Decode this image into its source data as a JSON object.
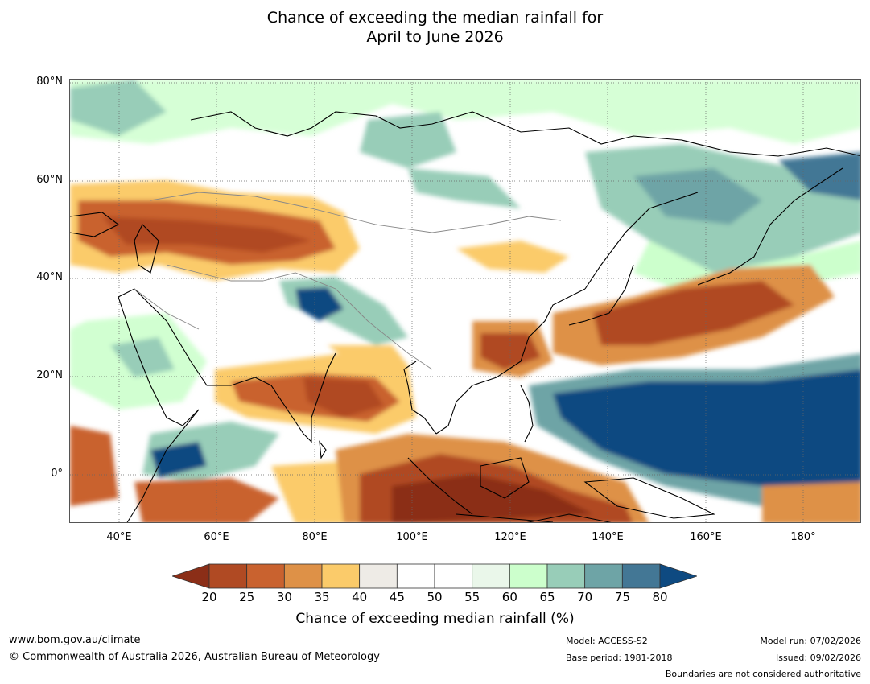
{
  "title": {
    "line1": "Chance of exceeding the median rainfall for",
    "line2": "April to June 2026"
  },
  "map": {
    "lat_labels": [
      "80°N",
      "60°N",
      "40°N",
      "20°N",
      "0°"
    ],
    "lon_labels": [
      "40°E",
      "60°E",
      "80°E",
      "100°E",
      "120°E",
      "140°E",
      "160°E",
      "180°"
    ],
    "extent": {
      "lon": [
        30,
        192
      ],
      "lat": [
        -10,
        80
      ]
    }
  },
  "colorbar": {
    "ticks": [
      "20",
      "25",
      "30",
      "35",
      "40",
      "45",
      "50",
      "55",
      "60",
      "65",
      "70",
      "75",
      "80"
    ],
    "colors": [
      "#8b2e17",
      "#b04a23",
      "#c9622f",
      "#de9147",
      "#fbcb6a",
      "#eeebe6",
      "#ffffff",
      "#ffffff",
      "#eaf7ea",
      "#ccffcc",
      "#98cdb8",
      "#6ea4a6",
      "#437795",
      "#0e4a81"
    ],
    "label": "Chance of exceeding median rainfall (%)"
  },
  "footer": {
    "website": "www.bom.gov.au/climate",
    "copyright": "© Commonwealth of Australia 2026, Australian Bureau of Meteorology",
    "model": "Model: ACCESS-S2",
    "base_period": "Base period: 1981-2018",
    "model_run": "Model run: 07/02/2026",
    "issued": "Issued: 09/02/2026",
    "disclaimer": "Boundaries are not considered authoritative"
  }
}
